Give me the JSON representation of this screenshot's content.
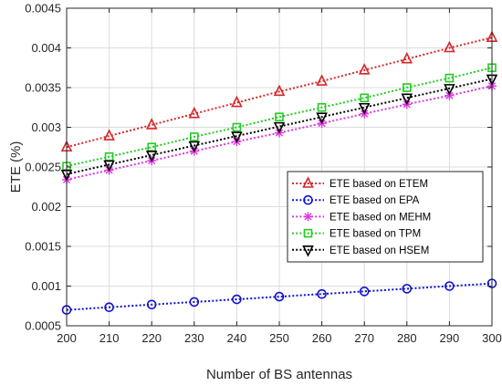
{
  "chart_data": {
    "type": "line",
    "title": "",
    "xlabel": "Number of BS antennas",
    "ylabel": "ETE (%)",
    "x": [
      200,
      210,
      220,
      230,
      240,
      250,
      260,
      270,
      280,
      290,
      300
    ],
    "xlim": [
      200,
      300
    ],
    "ylim": [
      0.0005,
      0.0045
    ],
    "xticks": [
      "200",
      "210",
      "220",
      "230",
      "240",
      "250",
      "260",
      "270",
      "280",
      "290",
      "300"
    ],
    "yticks": [
      "0.0005",
      "0.001",
      "0.0015",
      "0.002",
      "0.0025",
      "0.003",
      "0.0035",
      "0.004",
      "0.0045"
    ],
    "grid": true,
    "legend_position": "right",
    "series": [
      {
        "name": "ETE based on ETEM",
        "color": "#d62728",
        "marker": "triangle-up",
        "values": [
          0.00275,
          0.00289,
          0.00303,
          0.00317,
          0.00331,
          0.00345,
          0.00358,
          0.00372,
          0.00386,
          0.004,
          0.00413
        ]
      },
      {
        "name": "ETE based on EPA",
        "color": "#1010d0",
        "marker": "circle",
        "values": [
          0.0007,
          0.000733,
          0.000767,
          0.0008,
          0.000833,
          0.000867,
          0.0009,
          0.000933,
          0.000967,
          0.001,
          0.001033
        ]
      },
      {
        "name": "ETE based on MEHM",
        "color": "#e035e0",
        "marker": "asterisk",
        "values": [
          0.00234,
          0.00246,
          0.00258,
          0.0027,
          0.00282,
          0.00293,
          0.00305,
          0.00317,
          0.00329,
          0.0034,
          0.00352
        ]
      },
      {
        "name": "ETE based on TPM",
        "color": "#22cc22",
        "marker": "square",
        "values": [
          0.00251,
          0.00263,
          0.00275,
          0.00288,
          0.003,
          0.00313,
          0.00325,
          0.00337,
          0.0035,
          0.00362,
          0.00375
        ]
      },
      {
        "name": "ETE based on HSEM",
        "color": "#000000",
        "marker": "triangle-down",
        "values": [
          0.00241,
          0.00253,
          0.00265,
          0.00277,
          0.00289,
          0.00301,
          0.00313,
          0.00325,
          0.00337,
          0.00349,
          0.00361
        ]
      }
    ]
  }
}
